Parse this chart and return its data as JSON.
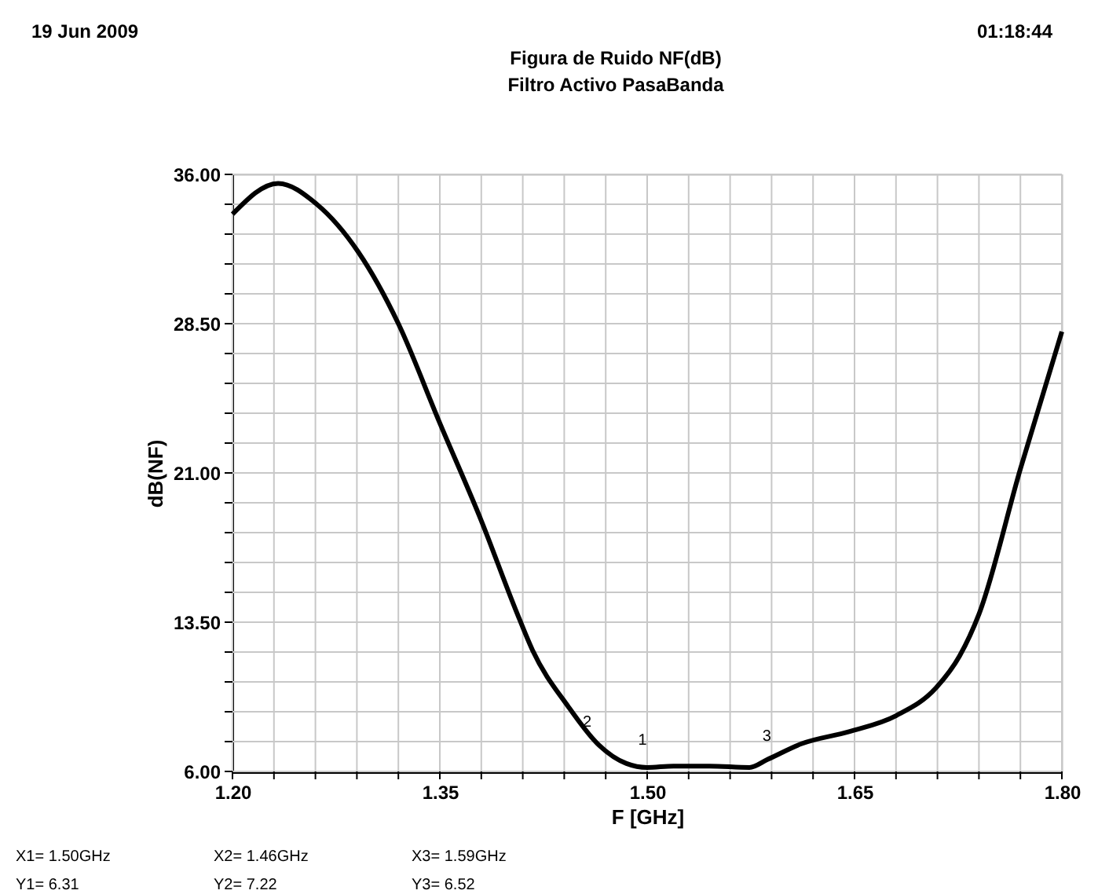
{
  "chart_data": {
    "type": "line",
    "title": "Figura de Ruido NF(dB)",
    "subtitle": "Filtro Activo PasaBanda",
    "xlabel": "F [GHz]",
    "ylabel": "dB(NF)",
    "series": [
      {
        "color": "#000000",
        "x": [
          1.2,
          1.233,
          1.261,
          1.291,
          1.32,
          1.35,
          1.38,
          1.405,
          1.417,
          1.443,
          1.464,
          1.485,
          1.5,
          1.519,
          1.545,
          1.574,
          1.587,
          1.612,
          1.646,
          1.68,
          1.709,
          1.726,
          1.74,
          1.77,
          1.8
        ],
        "values": [
          34.0,
          35.55,
          34.5,
          32.1,
          28.5,
          23.5,
          18.6,
          14.1,
          12.1,
          9.25,
          7.4,
          6.4,
          6.2,
          6.27,
          6.27,
          6.2,
          6.6,
          7.4,
          8.0,
          8.8,
          10.2,
          11.8,
          13.9,
          21.2,
          28.1
        ]
      }
    ],
    "xlim": [
      1.2,
      1.8
    ],
    "ylim": [
      6,
      36
    ],
    "xticks": [
      {
        "value": 1.2,
        "label": "1.20"
      },
      {
        "value": 1.23,
        "label": null
      },
      {
        "value": 1.26,
        "label": null
      },
      {
        "value": 1.29,
        "label": null
      },
      {
        "value": 1.32,
        "label": null
      },
      {
        "value": 1.35,
        "label": "1.35"
      },
      {
        "value": 1.38,
        "label": null
      },
      {
        "value": 1.41,
        "label": null
      },
      {
        "value": 1.44,
        "label": null
      },
      {
        "value": 1.47,
        "label": null
      },
      {
        "value": 1.5,
        "label": "1.50"
      },
      {
        "value": 1.53,
        "label": null
      },
      {
        "value": 1.56,
        "label": null
      },
      {
        "value": 1.59,
        "label": null
      },
      {
        "value": 1.62,
        "label": null
      },
      {
        "value": 1.65,
        "label": "1.65"
      },
      {
        "value": 1.68,
        "label": null
      },
      {
        "value": 1.71,
        "label": null
      },
      {
        "value": 1.74,
        "label": null
      },
      {
        "value": 1.77,
        "label": null
      },
      {
        "value": 1.8,
        "label": "1.80"
      }
    ],
    "yticks": [
      {
        "value": 6,
        "label": "6.00"
      },
      {
        "value": 7.5,
        "label": null
      },
      {
        "value": 9,
        "label": null
      },
      {
        "value": 10.5,
        "label": null
      },
      {
        "value": 12,
        "label": null
      },
      {
        "value": 13.5,
        "label": "13.50"
      },
      {
        "value": 15,
        "label": null
      },
      {
        "value": 16.5,
        "label": null
      },
      {
        "value": 18,
        "label": null
      },
      {
        "value": 19.5,
        "label": null
      },
      {
        "value": 21,
        "label": "21.00"
      },
      {
        "value": 22.5,
        "label": null
      },
      {
        "value": 24,
        "label": null
      },
      {
        "value": 25.5,
        "label": null
      },
      {
        "value": 27,
        "label": null
      },
      {
        "value": 28.5,
        "label": "28.50"
      },
      {
        "value": 30,
        "label": null
      },
      {
        "value": 31.5,
        "label": null
      },
      {
        "value": 33,
        "label": null
      },
      {
        "value": 34.5,
        "label": null
      },
      {
        "value": 36,
        "label": "36.00"
      }
    ],
    "grid": true,
    "marker": "none",
    "line_style": "solid",
    "annotations": [
      "19 Jun 2009",
      "01:18:44",
      "X1= 1.50GHz",
      "Y1= 6.31",
      "X2= 1.46GHz",
      "Y2= 7.22",
      "X3= 1.59GHz",
      "Y3= 6.52",
      {
        "text": "1",
        "x": 1.5,
        "y": 6.31
      },
      {
        "text": "2",
        "x": 1.46,
        "y": 7.22
      },
      {
        "text": "3",
        "x": 1.59,
        "y": 6.52
      }
    ]
  }
}
